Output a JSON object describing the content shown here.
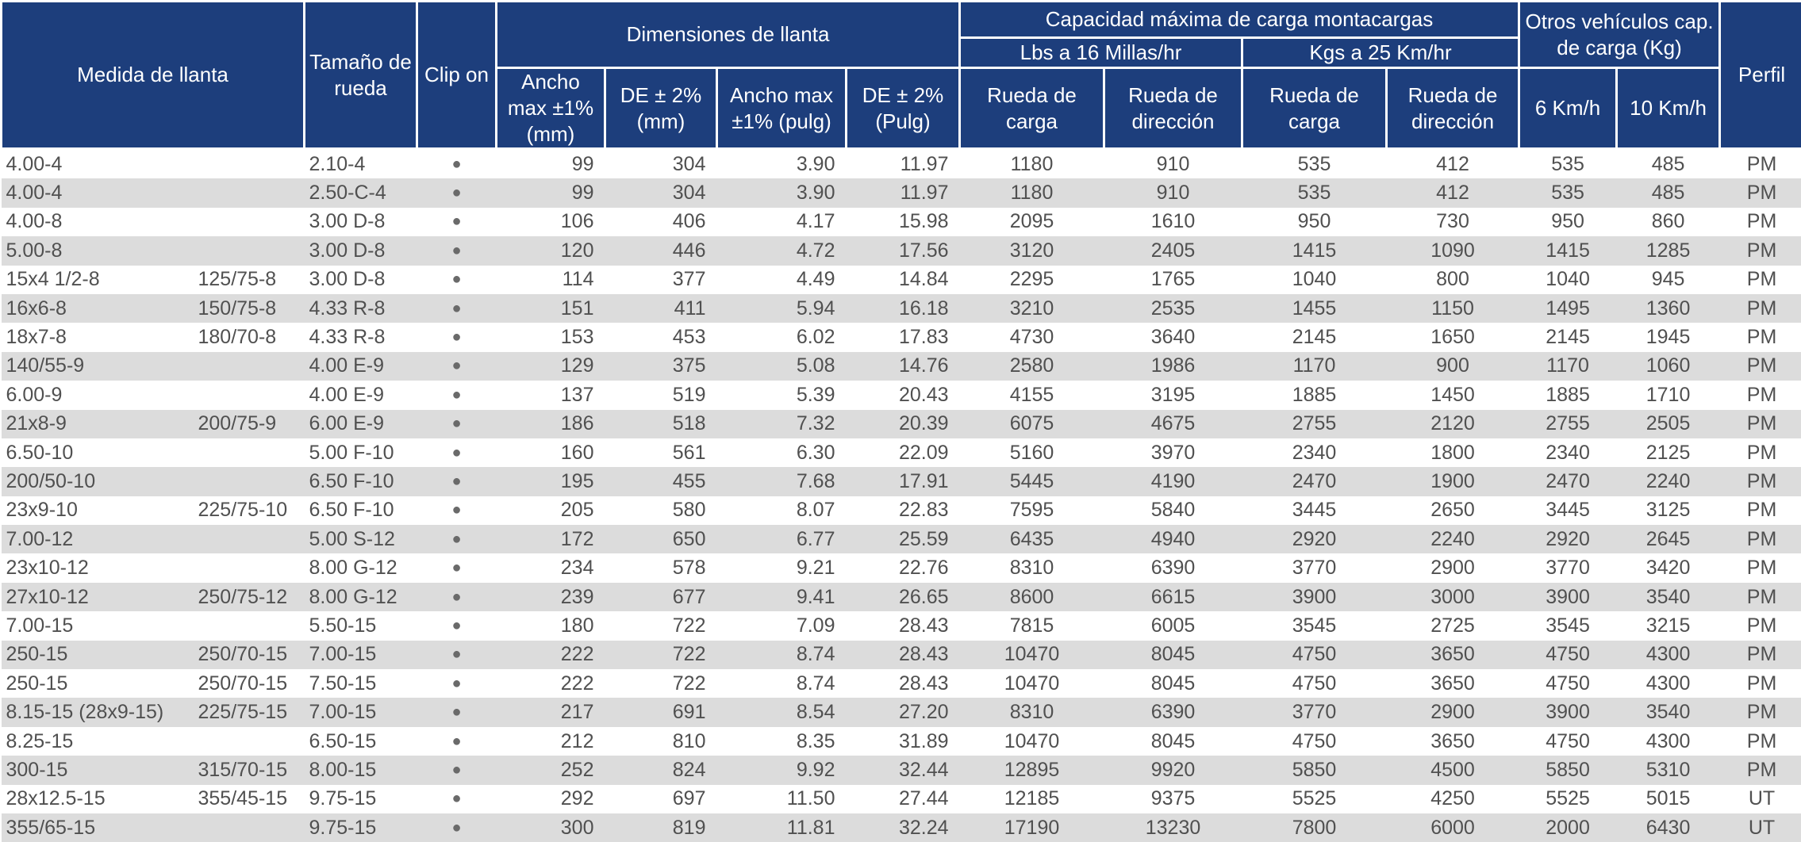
{
  "header": {
    "medida": "Medida de llanta",
    "tamano": "Tamaño de rueda",
    "clip": "Clip on",
    "dimensiones": "Dimensiones de llanta",
    "ancho_mm": "Ancho max ±1% (mm)",
    "de_mm": "DE ± 2% (mm)",
    "ancho_pulg": "Ancho max ±1% (pulg)",
    "de_pulg": "DE ± 2% (Pulg)",
    "capacidad": "Capacidad máxima de carga montacargas",
    "lbs": "Lbs a 16 Millas/hr",
    "kgs": "Kgs a 25 Km/hr",
    "rueda_carga": "Rueda de carga",
    "rueda_direccion": "Rueda de dirección",
    "otros": "Otros vehículos cap. de carga (Kg)",
    "km6": "6 Km/h",
    "km10": "10 Km/h",
    "perfil": "Perfil"
  },
  "bullet": "●",
  "rows": [
    [
      "4.00-4",
      "",
      "2.10-4",
      "99",
      "304",
      "3.90",
      "11.97",
      "1180",
      "910",
      "535",
      "412",
      "535",
      "485",
      "PM"
    ],
    [
      "4.00-4",
      "",
      "2.50-C-4",
      "99",
      "304",
      "3.90",
      "11.97",
      "1180",
      "910",
      "535",
      "412",
      "535",
      "485",
      "PM"
    ],
    [
      "4.00-8",
      "",
      "3.00 D-8",
      "106",
      "406",
      "4.17",
      "15.98",
      "2095",
      "1610",
      "950",
      "730",
      "950",
      "860",
      "PM"
    ],
    [
      "5.00-8",
      "",
      "3.00 D-8",
      "120",
      "446",
      "4.72",
      "17.56",
      "3120",
      "2405",
      "1415",
      "1090",
      "1415",
      "1285",
      "PM"
    ],
    [
      "15x4 1/2-8",
      "125/75-8",
      "3.00 D-8",
      "114",
      "377",
      "4.49",
      "14.84",
      "2295",
      "1765",
      "1040",
      "800",
      "1040",
      "945",
      "PM"
    ],
    [
      "16x6-8",
      "150/75-8",
      "4.33 R-8",
      "151",
      "411",
      "5.94",
      "16.18",
      "3210",
      "2535",
      "1455",
      "1150",
      "1495",
      "1360",
      "PM"
    ],
    [
      "18x7-8",
      "180/70-8",
      "4.33 R-8",
      "153",
      "453",
      "6.02",
      "17.83",
      "4730",
      "3640",
      "2145",
      "1650",
      "2145",
      "1945",
      "PM"
    ],
    [
      "140/55-9",
      "",
      "4.00 E-9",
      "129",
      "375",
      "5.08",
      "14.76",
      "2580",
      "1986",
      "1170",
      "900",
      "1170",
      "1060",
      "PM"
    ],
    [
      "6.00-9",
      "",
      "4.00 E-9",
      "137",
      "519",
      "5.39",
      "20.43",
      "4155",
      "3195",
      "1885",
      "1450",
      "1885",
      "1710",
      "PM"
    ],
    [
      "21x8-9",
      "200/75-9",
      "6.00 E-9",
      "186",
      "518",
      "7.32",
      "20.39",
      "6075",
      "4675",
      "2755",
      "2120",
      "2755",
      "2505",
      "PM"
    ],
    [
      "6.50-10",
      "",
      "5.00 F-10",
      "160",
      "561",
      "6.30",
      "22.09",
      "5160",
      "3970",
      "2340",
      "1800",
      "2340",
      "2125",
      "PM"
    ],
    [
      "200/50-10",
      "",
      "6.50 F-10",
      "195",
      "455",
      "7.68",
      "17.91",
      "5445",
      "4190",
      "2470",
      "1900",
      "2470",
      "2240",
      "PM"
    ],
    [
      "23x9-10",
      "225/75-10",
      "6.50 F-10",
      "205",
      "580",
      "8.07",
      "22.83",
      "7595",
      "5840",
      "3445",
      "2650",
      "3445",
      "3125",
      "PM"
    ],
    [
      "7.00-12",
      "",
      "5.00 S-12",
      "172",
      "650",
      "6.77",
      "25.59",
      "6435",
      "4940",
      "2920",
      "2240",
      "2920",
      "2645",
      "PM"
    ],
    [
      "23x10-12",
      "",
      "8.00 G-12",
      "234",
      "578",
      "9.21",
      "22.76",
      "8310",
      "6390",
      "3770",
      "2900",
      "3770",
      "3420",
      "PM"
    ],
    [
      "27x10-12",
      "250/75-12",
      "8.00 G-12",
      "239",
      "677",
      "9.41",
      "26.65",
      "8600",
      "6615",
      "3900",
      "3000",
      "3900",
      "3540",
      "PM"
    ],
    [
      "7.00-15",
      "",
      "5.50-15",
      "180",
      "722",
      "7.09",
      "28.43",
      "7815",
      "6005",
      "3545",
      "2725",
      "3545",
      "3215",
      "PM"
    ],
    [
      "250-15",
      "250/70-15",
      "7.00-15",
      "222",
      "722",
      "8.74",
      "28.43",
      "10470",
      "8045",
      "4750",
      "3650",
      "4750",
      "4300",
      "PM"
    ],
    [
      "250-15",
      "250/70-15",
      "7.50-15",
      "222",
      "722",
      "8.74",
      "28.43",
      "10470",
      "8045",
      "4750",
      "3650",
      "4750",
      "4300",
      "PM"
    ],
    [
      "8.15-15 (28x9-15)",
      "225/75-15",
      "7.00-15",
      "217",
      "691",
      "8.54",
      "27.20",
      "8310",
      "6390",
      "3770",
      "2900",
      "3900",
      "3540",
      "PM"
    ],
    [
      "8.25-15",
      "",
      "6.50-15",
      "212",
      "810",
      "8.35",
      "31.89",
      "10470",
      "8045",
      "4750",
      "3650",
      "4750",
      "4300",
      "PM"
    ],
    [
      "300-15",
      "315/70-15",
      "8.00-15",
      "252",
      "824",
      "9.92",
      "32.44",
      "12895",
      "9920",
      "5850",
      "4500",
      "5850",
      "5310",
      "PM"
    ],
    [
      "28x12.5-15",
      "355/45-15",
      "9.75-15",
      "292",
      "697",
      "11.50",
      "27.44",
      "12185",
      "9375",
      "5525",
      "4250",
      "5525",
      "5015",
      "UT"
    ],
    [
      "355/65-15",
      "",
      "9.75-15",
      "300",
      "819",
      "11.81",
      "32.24",
      "17190",
      "13230",
      "7800",
      "6000",
      "2000",
      "6430",
      "UT"
    ]
  ]
}
